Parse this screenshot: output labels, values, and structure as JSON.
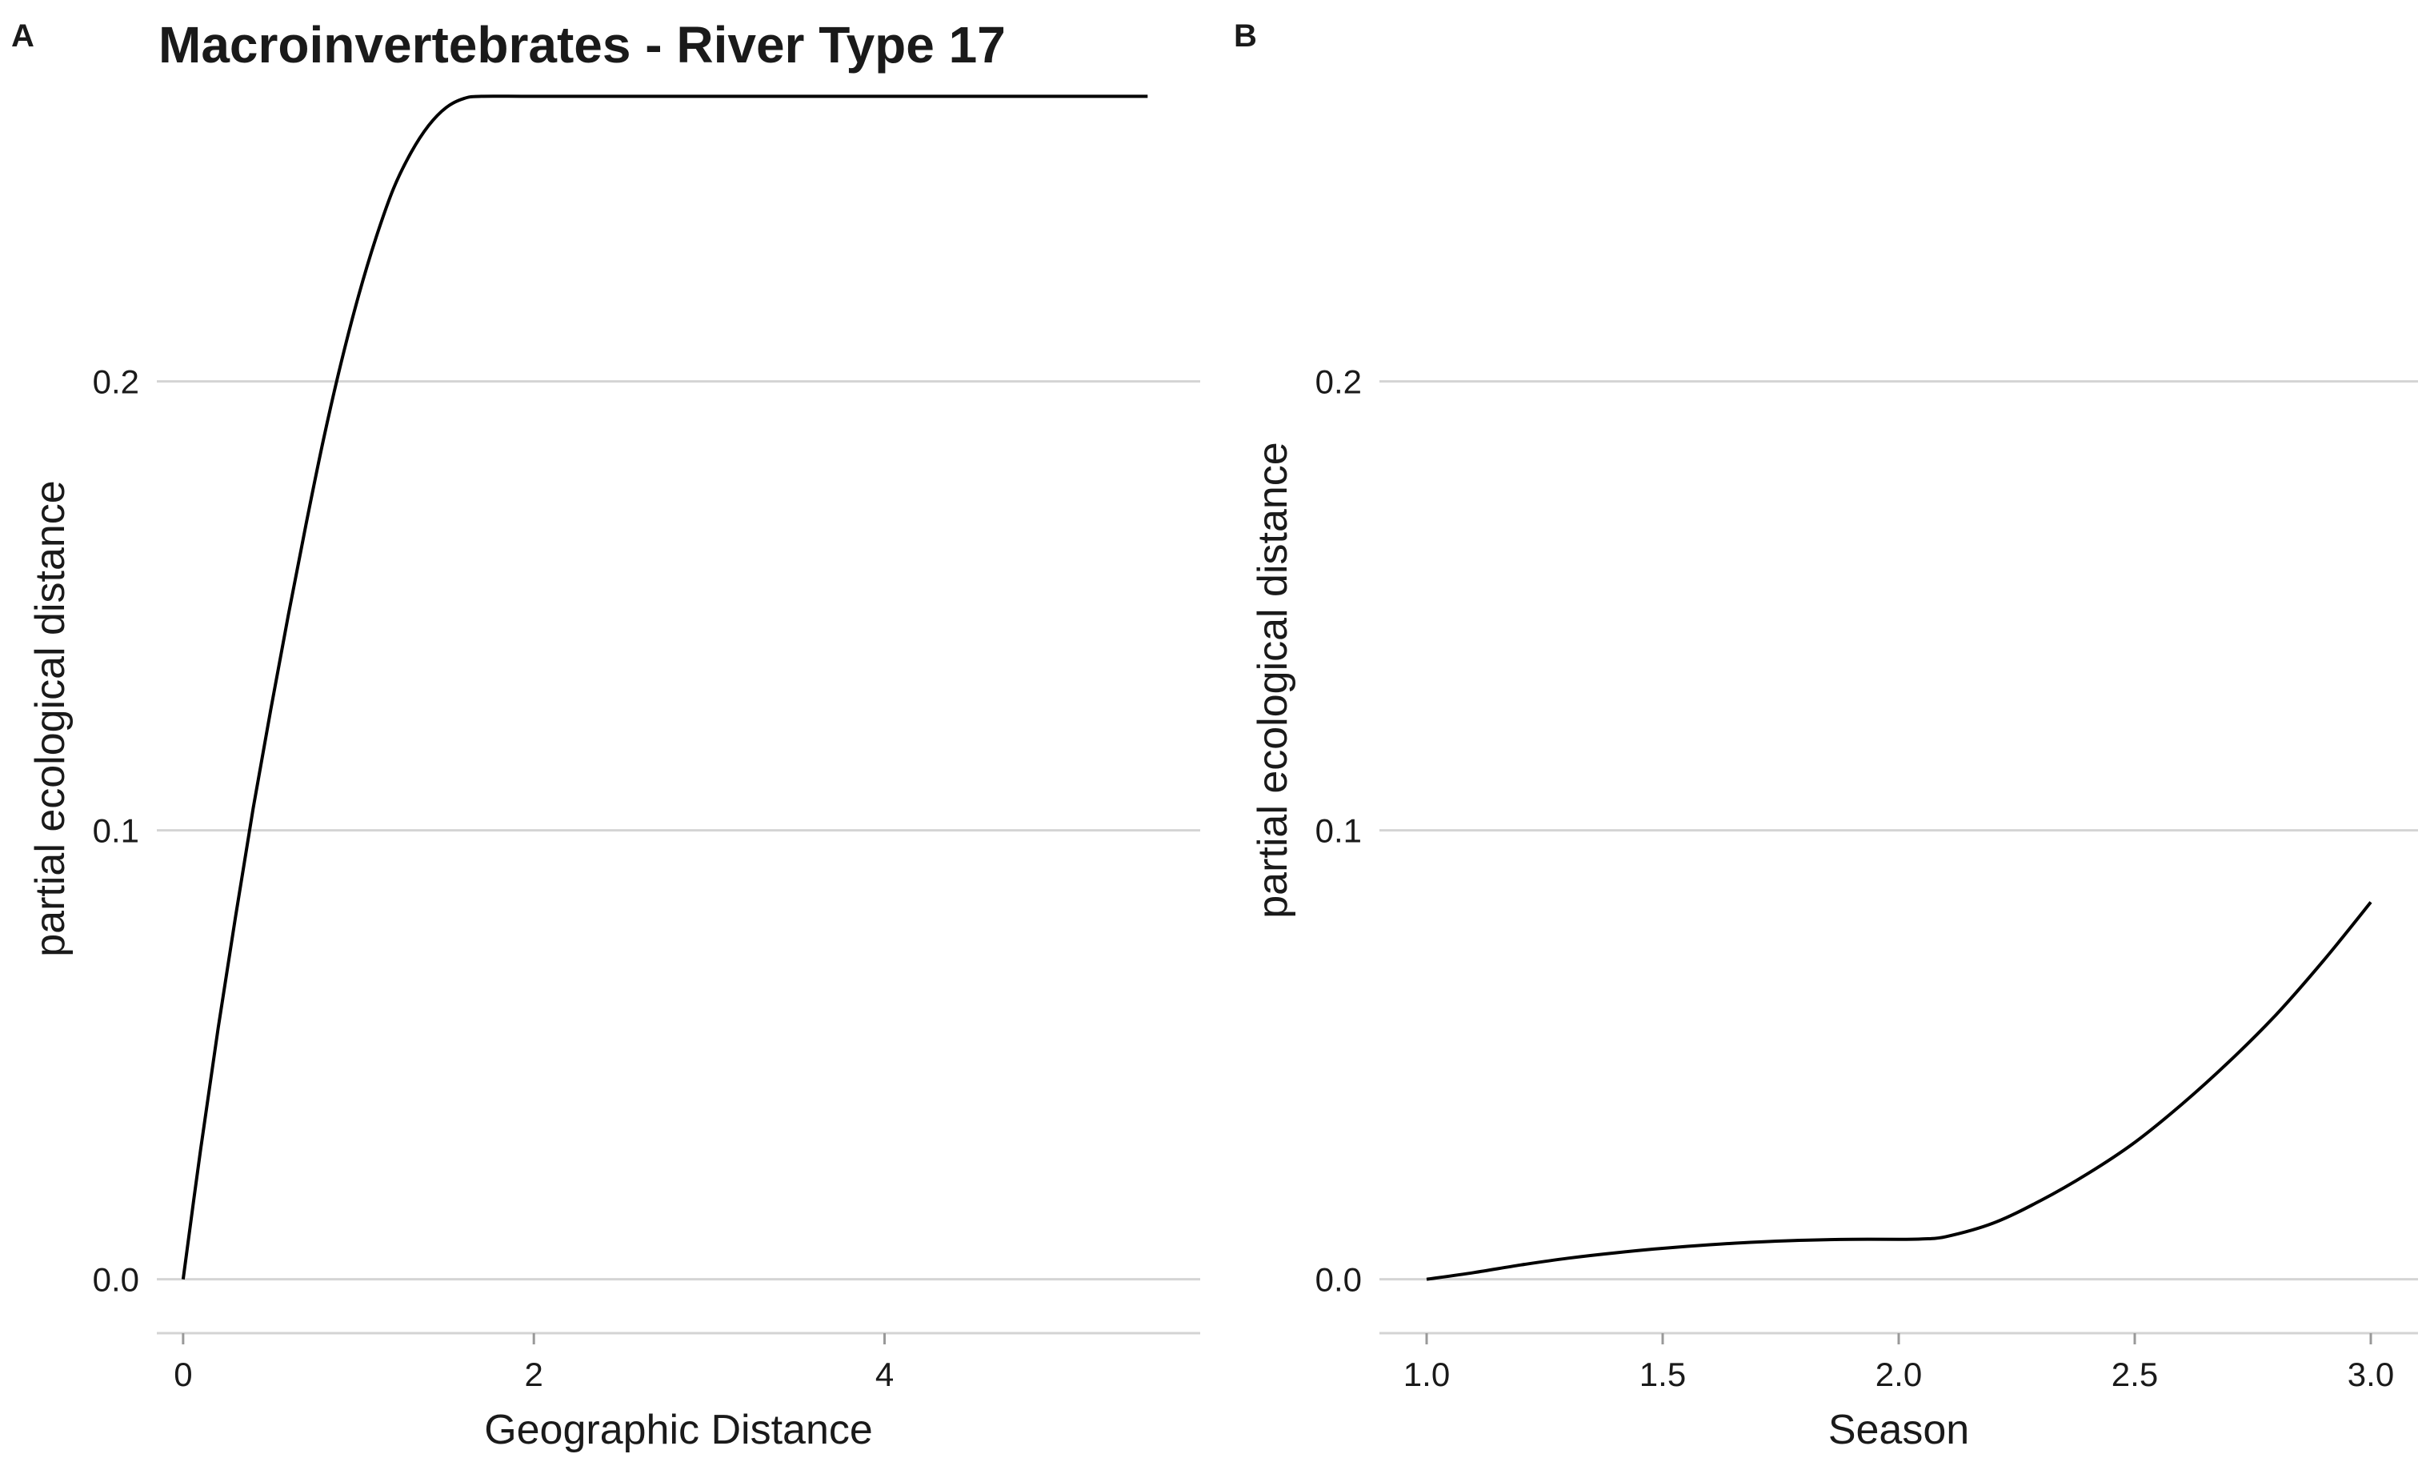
{
  "chart_data": [
    {
      "panel": "A",
      "type": "line",
      "title": "Macroinvertebrates - River Type 17",
      "xlabel": "Geographic Distance",
      "ylabel": "partial ecological distance",
      "xlim": [
        -0.15,
        5.8
      ],
      "ylim": [
        -0.012,
        0.26
      ],
      "xticks": [
        0,
        2,
        4
      ],
      "xtick_labels": [
        "0",
        "2",
        "4"
      ],
      "yticks": [
        0,
        0.1,
        0.2
      ],
      "ytick_labels": [
        "0.0",
        "0.1",
        "0.2"
      ],
      "grid": "horizontal",
      "series": [
        {
          "x": [
            0,
            0.1,
            0.2,
            0.3,
            0.4,
            0.5,
            0.6,
            0.7,
            0.8,
            0.9,
            1.0,
            1.1,
            1.2,
            1.3,
            1.4,
            1.5,
            1.6,
            1.7,
            2.0,
            3.0,
            4.0,
            5.0,
            5.5
          ],
          "y": [
            0,
            0.029,
            0.056,
            0.081,
            0.105,
            0.127,
            0.148,
            0.168,
            0.187,
            0.204,
            0.219,
            0.232,
            0.243,
            0.251,
            0.257,
            0.261,
            0.263,
            0.2635,
            0.2635,
            0.2635,
            0.2635,
            0.2635,
            0.2635
          ]
        }
      ]
    },
    {
      "panel": "B",
      "type": "line",
      "title": "",
      "xlabel": "Season",
      "ylabel": "partial ecological distance",
      "xlim": [
        0.9,
        3.1
      ],
      "ylim": [
        -0.012,
        0.26
      ],
      "xticks": [
        1.0,
        1.5,
        2.0,
        2.5,
        3.0
      ],
      "xtick_labels": [
        "1.0",
        "1.5",
        "2.0",
        "2.5",
        "3.0"
      ],
      "yticks": [
        0,
        0.1,
        0.2
      ],
      "ytick_labels": [
        "0.0",
        "0.1",
        "0.2"
      ],
      "grid": "horizontal",
      "series": [
        {
          "x": [
            1.0,
            1.1,
            1.2,
            1.3,
            1.4,
            1.5,
            1.6,
            1.7,
            1.8,
            1.9,
            2.0,
            2.05,
            2.1,
            2.2,
            2.3,
            2.4,
            2.5,
            2.6,
            2.7,
            2.8,
            2.9,
            3.0
          ],
          "y": [
            0,
            0.0015,
            0.0032,
            0.0047,
            0.0059,
            0.0069,
            0.0077,
            0.0083,
            0.0087,
            0.0089,
            0.0089,
            0.009,
            0.0095,
            0.0125,
            0.0175,
            0.0235,
            0.0305,
            0.039,
            0.0485,
            0.059,
            0.071,
            0.084
          ]
        }
      ]
    }
  ]
}
